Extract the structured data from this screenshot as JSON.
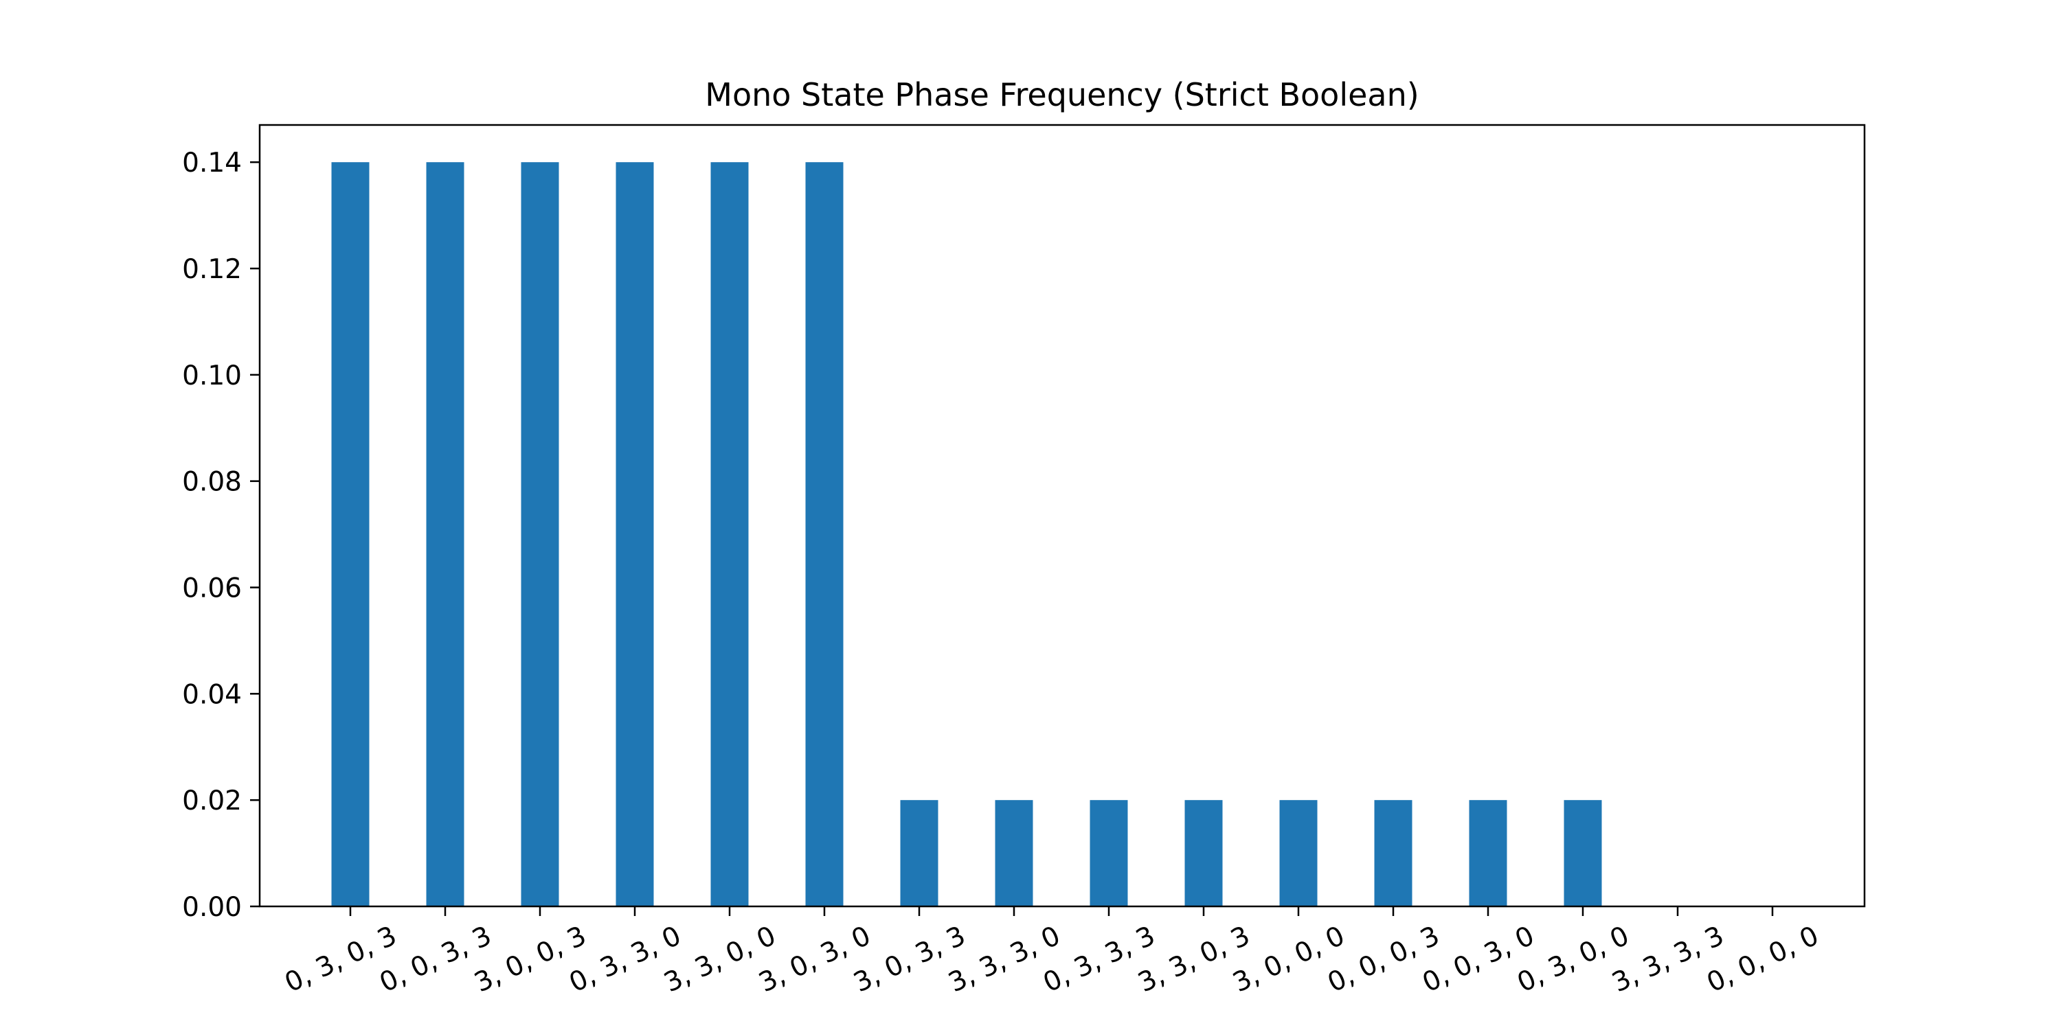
{
  "chart_data": {
    "type": "bar",
    "title": "Mono State Phase Frequency (Strict Boolean)",
    "xlabel": "",
    "ylabel": "",
    "categories": [
      "0, 3, 0, 3",
      "0, 0, 3, 3",
      "3, 0, 0, 3",
      "0, 3, 3, 0",
      "3, 3, 0, 0",
      "3, 0, 3, 0",
      "3, 0, 3, 3",
      "3, 3, 3, 0",
      "0, 3, 3, 3",
      "3, 3, 0, 3",
      "3, 0, 0, 0",
      "0, 0, 0, 3",
      "0, 0, 3, 0",
      "0, 3, 0, 0",
      "3, 3, 3, 3",
      "0, 0, 0, 0"
    ],
    "values": [
      0.14,
      0.14,
      0.14,
      0.14,
      0.14,
      0.14,
      0.02,
      0.02,
      0.02,
      0.02,
      0.02,
      0.02,
      0.02,
      0.02,
      0,
      0
    ],
    "ylim": [
      0,
      0.147
    ],
    "yticks": [
      "0.00",
      "0.02",
      "0.04",
      "0.06",
      "0.08",
      "0.10",
      "0.12",
      "0.14"
    ],
    "grid": false,
    "bar_color": "#1f77b4"
  }
}
